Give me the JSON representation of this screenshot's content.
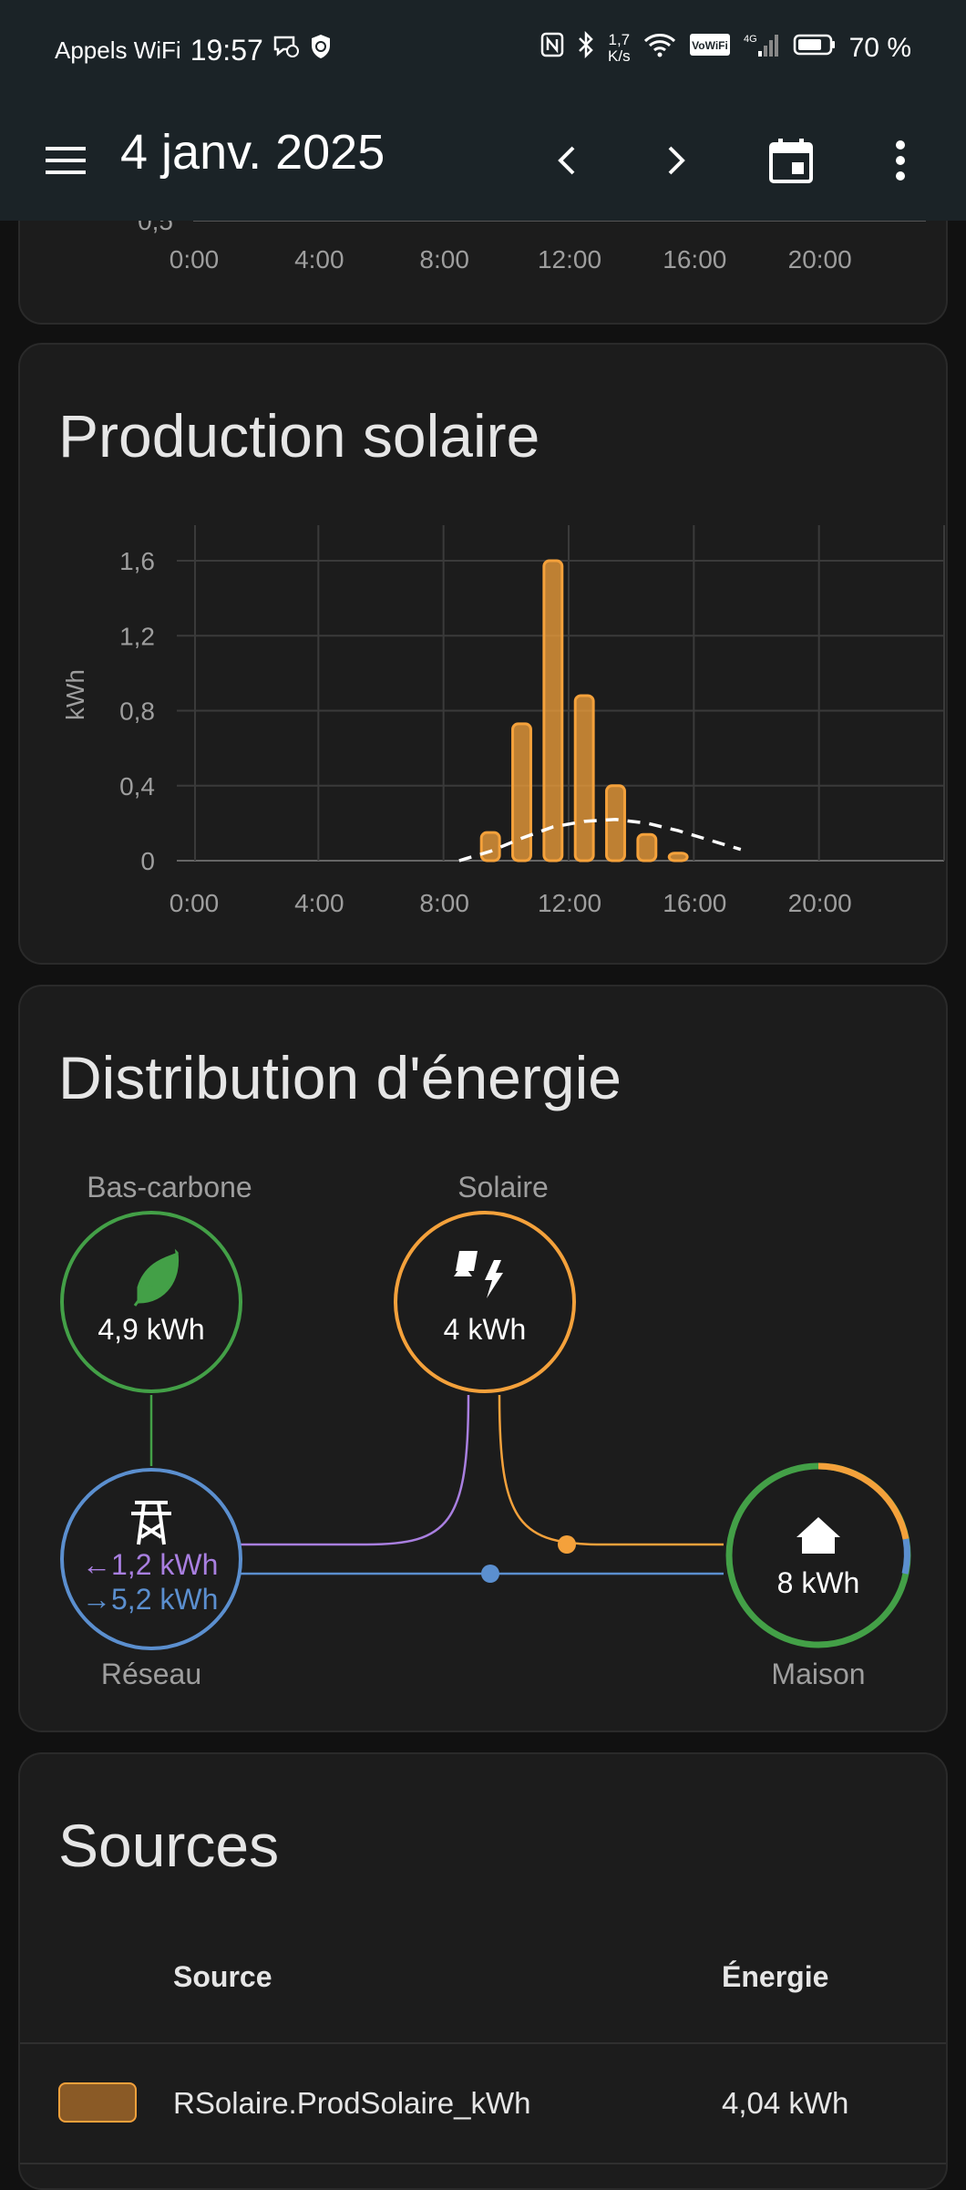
{
  "status_bar": {
    "carrier": "Appels WiFi",
    "time": "19:57",
    "net_speed_value": "1,7",
    "net_speed_unit": "K/s",
    "battery": "70 %",
    "icons": [
      "chat-bubble-icon",
      "shield-icon",
      "nfc-icon",
      "bluetooth-icon",
      "wifi-icon",
      "vowifi-icon",
      "signal-4g-icon",
      "battery-icon"
    ]
  },
  "header": {
    "title": "4 janv. 2025"
  },
  "top_chart_partial": {
    "ticks": [
      "0:00",
      "4:00",
      "8:00",
      "12:00",
      "16:00",
      "20:00"
    ],
    "cut_label": "0,5"
  },
  "solar_card": {
    "title": "Production solaire",
    "chart_data": {
      "type": "bar",
      "ylabel": "kWh",
      "ylim": [
        0,
        1.78
      ],
      "yticks": [
        "0",
        "0,4",
        "0,8",
        "1,2",
        "1,6"
      ],
      "xticks": [
        "0:00",
        "4:00",
        "8:00",
        "12:00",
        "16:00",
        "20:00"
      ],
      "grid": true,
      "bar_color": "#f4a13b",
      "series": [
        {
          "x": [
            "9:00",
            "10:00",
            "11:00",
            "12:00",
            "13:00",
            "14:00",
            "15:00"
          ],
          "values": [
            0.15,
            0.73,
            1.6,
            0.88,
            0.4,
            0.14,
            0.04
          ]
        },
        {
          "type": "line",
          "style": "dashed",
          "color": "#ffffff",
          "x": [
            "8:00",
            "9:00",
            "10:00",
            "11:00",
            "12:00",
            "13:00",
            "14:00",
            "15:00",
            "16:00",
            "17:00"
          ],
          "values": [
            0.0,
            0.05,
            0.12,
            0.18,
            0.21,
            0.22,
            0.2,
            0.16,
            0.11,
            0.06
          ]
        }
      ]
    }
  },
  "distribution_card": {
    "title": "Distribution d'énergie",
    "low_carbon": {
      "label": "Bas-carbone",
      "value": "4,9 kWh",
      "color": "#43a047"
    },
    "solar": {
      "label": "Solaire",
      "value": "4 kWh",
      "color": "#f4a13b"
    },
    "grid": {
      "label": "Réseau",
      "return_value": "1,2 kWh",
      "consume_value": "5,2 kWh",
      "color": "#5b8fcf",
      "return_color": "#a97fe0"
    },
    "home": {
      "label": "Maison",
      "value": "8 kWh"
    }
  },
  "sources_card": {
    "title": "Sources",
    "col_source": "Source",
    "col_energy": "Énergie",
    "rows": [
      {
        "color": "#8a5a26",
        "source": "RSolaire.ProdSolaire_kWh",
        "energy": "4,04 kWh"
      }
    ]
  }
}
